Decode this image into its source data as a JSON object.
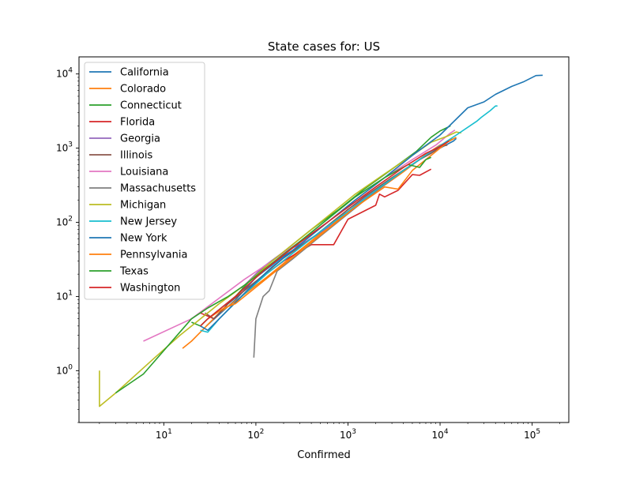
{
  "chart_data": {
    "type": "line",
    "title": "State cases for: US",
    "xlabel": "Confirmed",
    "ylabel": "",
    "xscale": "log",
    "yscale": "log",
    "xlim": [
      1.2,
      250000
    ],
    "ylim": [
      0.2,
      17000
    ],
    "xticks": [
      {
        "value": 10,
        "base": "10",
        "exp": "1"
      },
      {
        "value": 100,
        "base": "10",
        "exp": "2"
      },
      {
        "value": 1000,
        "base": "10",
        "exp": "3"
      },
      {
        "value": 10000,
        "base": "10",
        "exp": "4"
      },
      {
        "value": 100000,
        "base": "10",
        "exp": "5"
      }
    ],
    "yticks": [
      {
        "value": 1,
        "base": "10",
        "exp": "0"
      },
      {
        "value": 10,
        "base": "10",
        "exp": "1"
      },
      {
        "value": 100,
        "base": "10",
        "exp": "2"
      },
      {
        "value": 1000,
        "base": "10",
        "exp": "3"
      },
      {
        "value": 10000,
        "base": "10",
        "exp": "4"
      }
    ],
    "grid": false,
    "legend_position": "upper-left",
    "series": [
      {
        "name": "California",
        "color": "#1f77b4",
        "points": [
          [
            29,
            4
          ],
          [
            60,
            9
          ],
          [
            100,
            18
          ],
          [
            200,
            35
          ],
          [
            400,
            60
          ],
          [
            800,
            110
          ],
          [
            1500,
            210
          ],
          [
            3000,
            380
          ],
          [
            6000,
            700
          ],
          [
            10000,
            1000
          ],
          [
            14000,
            1250
          ],
          [
            15000,
            1350
          ]
        ]
      },
      {
        "name": "Colorado",
        "color": "#ff7f0e",
        "points": [
          [
            16,
            2
          ],
          [
            20,
            2.5
          ],
          [
            25,
            3.3
          ],
          [
            40,
            6
          ],
          [
            70,
            10
          ],
          [
            130,
            18
          ],
          [
            250,
            35
          ],
          [
            500,
            70
          ],
          [
            1000,
            140
          ],
          [
            2000,
            260
          ],
          [
            4000,
            480
          ],
          [
            7000,
            820
          ],
          [
            10000,
            1100
          ],
          [
            12000,
            1200
          ],
          [
            13500,
            1350
          ]
        ]
      },
      {
        "name": "Connecticut",
        "color": "#2ca02c",
        "points": [
          [
            20,
            4.5
          ],
          [
            25,
            4
          ],
          [
            30,
            5
          ],
          [
            60,
            10
          ],
          [
            100,
            20
          ],
          [
            200,
            40
          ],
          [
            400,
            80
          ],
          [
            800,
            150
          ],
          [
            1500,
            280
          ],
          [
            3000,
            520
          ],
          [
            5500,
            900
          ],
          [
            8000,
            1400
          ],
          [
            10000,
            1700
          ],
          [
            12000,
            1900
          ],
          [
            13000,
            2000
          ]
        ]
      },
      {
        "name": "Florida",
        "color": "#d62728",
        "points": [
          [
            25,
            6
          ],
          [
            35,
            5
          ],
          [
            50,
            8
          ],
          [
            100,
            16
          ],
          [
            200,
            30
          ],
          [
            400,
            50
          ],
          [
            700,
            50
          ],
          [
            1000,
            110
          ],
          [
            2000,
            170
          ],
          [
            2200,
            240
          ],
          [
            2500,
            220
          ],
          [
            3500,
            270
          ],
          [
            5000,
            440
          ],
          [
            6000,
            430
          ],
          [
            8000,
            520
          ]
        ]
      },
      {
        "name": "Georgia",
        "color": "#9467bd",
        "points": [
          [
            70,
            13
          ],
          [
            120,
            25
          ],
          [
            200,
            40
          ],
          [
            350,
            55
          ],
          [
            600,
            85
          ],
          [
            1000,
            150
          ],
          [
            2000,
            270
          ],
          [
            3500,
            450
          ],
          [
            5000,
            600
          ],
          [
            7000,
            800
          ],
          [
            9000,
            950
          ],
          [
            10500,
            1050
          ]
        ]
      },
      {
        "name": "Illinois",
        "color": "#8c564b",
        "points": [
          [
            28,
            6
          ],
          [
            35,
            5
          ],
          [
            50,
            8
          ],
          [
            100,
            16
          ],
          [
            200,
            33
          ],
          [
            400,
            60
          ],
          [
            800,
            120
          ],
          [
            1500,
            220
          ],
          [
            3000,
            400
          ],
          [
            6000,
            700
          ],
          [
            8000,
            850
          ],
          [
            10000,
            1050
          ],
          [
            12000,
            1100
          ]
        ]
      },
      {
        "name": "Louisiana",
        "color": "#e377c2",
        "points": [
          [
            6,
            2.5
          ],
          [
            20,
            5
          ],
          [
            75,
            17
          ],
          [
            150,
            30
          ],
          [
            300,
            55
          ],
          [
            600,
            100
          ],
          [
            1200,
            200
          ],
          [
            2500,
            400
          ],
          [
            5000,
            700
          ],
          [
            9000,
            1100
          ],
          [
            13000,
            1600
          ],
          [
            14500,
            1750
          ]
        ]
      },
      {
        "name": "Massachusetts",
        "color": "#7f7f7f",
        "points": [
          [
            95,
            1.5
          ],
          [
            100,
            5
          ],
          [
            120,
            10
          ],
          [
            140,
            12
          ],
          [
            170,
            22
          ],
          [
            250,
            32
          ],
          [
            500,
            65
          ],
          [
            1000,
            130
          ],
          [
            2000,
            260
          ],
          [
            4000,
            500
          ],
          [
            6000,
            700
          ],
          [
            8000,
            900
          ]
        ]
      },
      {
        "name": "Michigan",
        "color": "#bcbd22",
        "points": [
          [
            2,
            1
          ],
          [
            2,
            0.33
          ],
          [
            3,
            0.5
          ],
          [
            8,
            1.5
          ],
          [
            15,
            3
          ],
          [
            25,
            5
          ],
          [
            40,
            8
          ],
          [
            80,
            15
          ],
          [
            150,
            30
          ],
          [
            300,
            60
          ],
          [
            600,
            120
          ],
          [
            1200,
            240
          ],
          [
            2500,
            450
          ],
          [
            5000,
            800
          ],
          [
            8000,
            1200
          ],
          [
            12000,
            1450
          ],
          [
            15000,
            1650
          ],
          [
            17000,
            1600
          ]
        ]
      },
      {
        "name": "New Jersey",
        "color": "#17becf",
        "points": [
          [
            25,
            3.5
          ],
          [
            30,
            3.3
          ],
          [
            40,
            5
          ],
          [
            70,
            10
          ],
          [
            130,
            20
          ],
          [
            250,
            38
          ],
          [
            500,
            75
          ],
          [
            1000,
            140
          ],
          [
            2000,
            270
          ],
          [
            4000,
            500
          ],
          [
            8000,
            900
          ],
          [
            15000,
            1500
          ],
          [
            25000,
            2300
          ],
          [
            28000,
            2600
          ],
          [
            35000,
            3200
          ],
          [
            40000,
            3700
          ],
          [
            42000,
            3700
          ]
        ]
      },
      {
        "name": "New York",
        "color": "#1f77b4",
        "points": [
          [
            25,
            4
          ],
          [
            30,
            3.5
          ],
          [
            40,
            5
          ],
          [
            80,
            12
          ],
          [
            150,
            25
          ],
          [
            300,
            50
          ],
          [
            600,
            100
          ],
          [
            1200,
            200
          ],
          [
            2500,
            400
          ],
          [
            5000,
            800
          ],
          [
            10000,
            1500
          ],
          [
            20000,
            3500
          ],
          [
            30000,
            4200
          ],
          [
            40000,
            5300
          ],
          [
            60000,
            6800
          ],
          [
            80000,
            7800
          ],
          [
            110000,
            9500
          ],
          [
            130000,
            9600
          ]
        ]
      },
      {
        "name": "Pennsylvania",
        "color": "#ff7f0e",
        "points": [
          [
            30,
            5
          ],
          [
            45,
            7
          ],
          [
            60,
            8
          ],
          [
            90,
            12
          ],
          [
            150,
            20
          ],
          [
            300,
            40
          ],
          [
            600,
            80
          ],
          [
            1200,
            160
          ],
          [
            2500,
            300
          ],
          [
            3500,
            280
          ],
          [
            5000,
            500
          ],
          [
            8000,
            800
          ],
          [
            12000,
            1200
          ],
          [
            15000,
            1400
          ]
        ]
      },
      {
        "name": "Texas",
        "color": "#2ca02c",
        "points": [
          [
            3,
            0.5
          ],
          [
            6,
            0.9
          ],
          [
            20,
            5
          ],
          [
            30,
            7
          ],
          [
            50,
            10
          ],
          [
            80,
            15
          ],
          [
            150,
            28
          ],
          [
            300,
            55
          ],
          [
            600,
            110
          ],
          [
            1200,
            220
          ],
          [
            2500,
            400
          ],
          [
            4500,
            600
          ],
          [
            6000,
            550
          ],
          [
            7000,
            700
          ],
          [
            8000,
            750
          ]
        ]
      },
      {
        "name": "Washington",
        "color": "#d62728",
        "points": [
          [
            25,
            4
          ],
          [
            30,
            5
          ],
          [
            60,
            10
          ],
          [
            120,
            22
          ],
          [
            250,
            45
          ],
          [
            500,
            85
          ],
          [
            1000,
            160
          ],
          [
            2000,
            300
          ],
          [
            4000,
            550
          ],
          [
            7000,
            850
          ],
          [
            10000,
            1050
          ],
          [
            12500,
            1250
          ]
        ]
      }
    ]
  }
}
